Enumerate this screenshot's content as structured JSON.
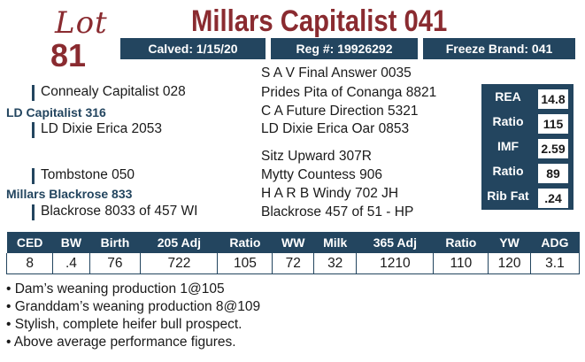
{
  "lot": {
    "word": "Lot",
    "number": "81"
  },
  "title": "Millars Capitalist 041",
  "header": {
    "calved": "Calved: 1/15/20",
    "reg": "Reg #: 19926292",
    "freeze_brand": "Freeze Brand: 041"
  },
  "pedigree": {
    "sire": "LD Capitalist 316",
    "sire_sire": "Connealy Capitalist 028",
    "sire_dam": "LD Dixie Erica 2053",
    "ssire_sire": "S A V Final Answer 0035",
    "ssire_dam": "Prides Pita of Conanga 8821",
    "sdam_sire": "C A Future Direction 5321",
    "sdam_dam": "LD Dixie Erica Oar 0853",
    "dam": "Millars Blackrose 833",
    "dam_sire": "Tombstone 050",
    "dam_dam": "Blackrose 8033 of 457 WI",
    "dsire_sire": "Sitz Upward 307R",
    "dsire_dam": "Mytty Countess 906",
    "ddam_sire": "H A R B Windy 702 JH",
    "ddam_dam": "Blackrose 457 of 51 - HP"
  },
  "carcass": [
    {
      "label": "REA",
      "value": "14.8"
    },
    {
      "label": "Ratio",
      "value": "115"
    },
    {
      "label": "IMF",
      "value": "2.59"
    },
    {
      "label": "Ratio",
      "value": "89"
    },
    {
      "label": "Rib Fat",
      "value": ".24"
    }
  ],
  "performance": {
    "headers": [
      "CED",
      "BW",
      "Birth",
      "205 Adj",
      "Ratio",
      "WW",
      "Milk",
      "365 Adj",
      "Ratio",
      "YW",
      "ADG"
    ],
    "values": [
      "8",
      ".4",
      "76",
      "722",
      "105",
      "72",
      "32",
      "1210",
      "110",
      "120",
      "3.1"
    ]
  },
  "notes": [
    "• Dam’s weaning production 1@105",
    "• Granddam’s weaning production 8@109",
    "• Stylish, complete heifer bull prospect.",
    "• Above average performance figures."
  ],
  "colors": {
    "navy": "#23455f",
    "maroon": "#8a2b30"
  }
}
